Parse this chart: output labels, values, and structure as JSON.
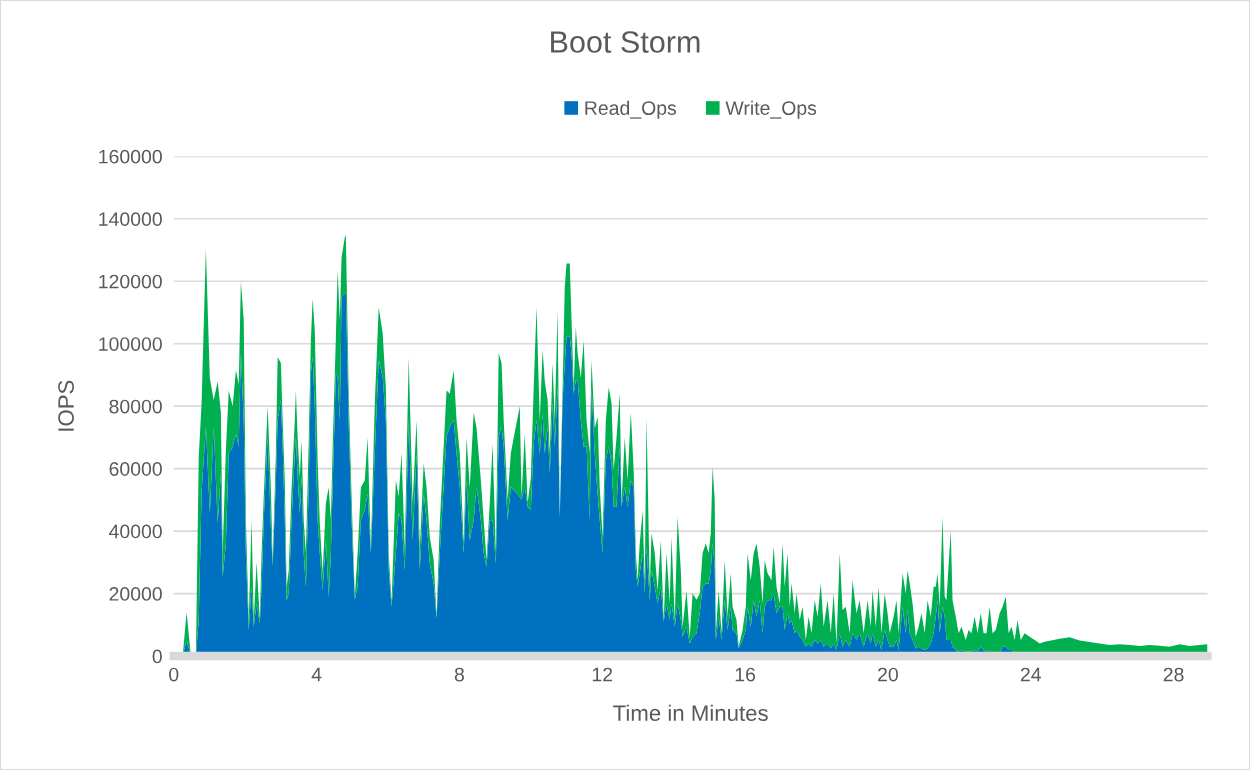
{
  "chart_data": {
    "type": "area",
    "title": "Boot Storm",
    "xlabel": "Time in Minutes",
    "ylabel": "IOPS",
    "stacked": true,
    "legend": "top",
    "grid": "y",
    "xlim": [
      0,
      28.95
    ],
    "xticks": [
      0,
      4,
      8,
      12,
      16,
      20,
      24,
      28
    ],
    "ylim": [
      0,
      160000
    ],
    "yticks": [
      0,
      20000,
      40000,
      60000,
      80000,
      100000,
      120000,
      140000,
      160000
    ],
    "x": [
      0,
      0.25,
      0.36,
      0.48,
      0.62,
      0.7,
      0.78,
      0.9,
      1.01,
      1.12,
      1.23,
      1.32,
      1.37,
      1.46,
      1.54,
      1.65,
      1.74,
      1.82,
      1.88,
      1.96,
      2.02,
      2.1,
      2.18,
      2.24,
      2.32,
      2.41,
      2.46,
      2.52,
      2.63,
      2.72,
      2.77,
      2.86,
      2.91,
      3.0,
      3.05,
      3.11,
      3.16,
      3.22,
      3.3,
      3.39,
      3.42,
      3.47,
      3.53,
      3.58,
      3.64,
      3.7,
      3.78,
      3.84,
      3.89,
      3.95,
      4.03,
      4.09,
      4.17,
      4.26,
      4.34,
      4.4,
      4.45,
      4.54,
      4.59,
      4.65,
      4.7,
      4.79,
      4.82,
      4.9,
      4.98,
      5.07,
      5.15,
      5.24,
      5.35,
      5.43,
      5.52,
      5.63,
      5.74,
      5.85,
      5.94,
      6.02,
      6.1,
      6.22,
      6.3,
      6.38,
      6.47,
      6.58,
      6.69,
      6.8,
      6.89,
      7.0,
      7.08,
      7.17,
      7.28,
      7.36,
      7.45,
      7.53,
      7.64,
      7.73,
      7.84,
      7.92,
      8.01,
      8.12,
      8.2,
      8.29,
      8.4,
      8.48,
      8.6,
      8.68,
      8.76,
      8.85,
      8.93,
      9.02,
      9.1,
      9.18,
      9.24,
      9.35,
      9.44,
      9.69,
      9.74,
      9.83,
      9.91,
      10.0,
      10.08,
      10.16,
      10.25,
      10.33,
      10.39,
      10.47,
      10.53,
      10.61,
      10.67,
      10.75,
      10.81,
      10.89,
      10.95,
      11.0,
      11.09,
      11.14,
      11.2,
      11.26,
      11.31,
      11.4,
      11.48,
      11.56,
      11.65,
      11.7,
      11.79,
      11.87,
      11.93,
      12.01,
      12.1,
      12.18,
      12.26,
      12.32,
      12.4,
      12.49,
      12.54,
      12.63,
      12.71,
      12.8,
      12.88,
      12.94,
      12.99,
      13.05,
      13.13,
      13.19,
      13.24,
      13.33,
      13.38,
      13.47,
      13.55,
      13.64,
      13.72,
      13.8,
      13.89,
      13.94,
      14.03,
      14.11,
      14.2,
      14.25,
      14.36,
      14.45,
      14.53,
      14.64,
      14.73,
      14.81,
      14.9,
      14.98,
      15.04,
      15.09,
      15.15,
      15.18,
      15.26,
      15.34,
      15.43,
      15.51,
      15.6,
      15.65,
      15.76,
      15.82,
      15.93,
      16.02,
      16.07,
      16.16,
      16.24,
      16.32,
      16.41,
      16.49,
      16.55,
      16.63,
      16.74,
      16.8,
      16.88,
      16.97,
      17.05,
      17.11,
      17.19,
      17.25,
      17.3,
      17.39,
      17.44,
      17.53,
      17.61,
      17.7,
      17.78,
      17.86,
      17.95,
      18.03,
      18.12,
      18.2,
      18.31,
      18.4,
      18.48,
      18.56,
      18.65,
      18.73,
      18.82,
      18.93,
      19.01,
      19.12,
      19.21,
      19.32,
      19.43,
      19.52,
      19.57,
      19.66,
      19.74,
      19.82,
      19.91,
      19.99,
      20.05,
      20.16,
      20.24,
      20.3,
      20.41,
      20.5,
      20.55,
      20.61,
      20.69,
      20.78,
      20.86,
      20.94,
      21.03,
      21.11,
      21.2,
      21.28,
      21.34,
      21.39,
      21.45,
      21.53,
      21.59,
      21.64,
      21.76,
      21.81,
      21.9,
      21.98,
      22.06,
      22.18,
      22.26,
      22.34,
      22.43,
      22.51,
      22.6,
      22.68,
      22.76,
      22.85,
      22.93,
      23.02,
      23.13,
      23.21,
      23.3,
      23.38,
      23.46,
      23.55,
      23.63,
      23.72,
      23.83,
      23.97,
      24.11,
      24.25,
      24.39,
      24.81,
      25.09,
      25.37,
      25.65,
      25.93,
      26.21,
      26.49,
      26.77,
      27.05,
      27.33,
      27.61,
      27.89,
      28.17,
      28.45,
      28.73,
      28.95
    ],
    "series": [
      {
        "name": "Read_Ops",
        "color": "#0070c0",
        "values": [
          0,
          0,
          5000,
          0,
          0,
          11500,
          52600,
          73400,
          45700,
          73400,
          42500,
          58500,
          25400,
          36000,
          64800,
          67000,
          71200,
          67000,
          96800,
          75500,
          32800,
          8300,
          22200,
          9400,
          16800,
          10400,
          22200,
          43500,
          70200,
          41400,
          28600,
          56300,
          75500,
          81900,
          67000,
          43500,
          17900,
          20000,
          43500,
          64800,
          70200,
          57400,
          45700,
          57400,
          32800,
          22200,
          54200,
          90400,
          95800,
          79800,
          43500,
          32800,
          21100,
          37100,
          19000,
          32800,
          54200,
          90400,
          89400,
          75500,
          115000,
          116000,
          116000,
          74400,
          43500,
          18000,
          22200,
          43500,
          46700,
          52000,
          32800,
          64800,
          94700,
          89400,
          75500,
          27500,
          15800,
          32800,
          45700,
          43500,
          27500,
          75500,
          37100,
          64800,
          27500,
          52000,
          43500,
          29600,
          23200,
          12000,
          32800,
          48800,
          70200,
          73400,
          75500,
          64800,
          54200,
          32800,
          56300,
          37100,
          43500,
          54200,
          43500,
          32800,
          28600,
          43500,
          43500,
          29600,
          70200,
          73400,
          67000,
          43500,
          54200,
          51000,
          50000,
          54200,
          47800,
          46700,
          68000,
          75500,
          64800,
          77600,
          64800,
          73400,
          58400,
          80900,
          67000,
          86200,
          44000,
          81900,
          93600,
          102200,
          102200,
          96900,
          84000,
          88300,
          88300,
          75500,
          67000,
          67000,
          43500,
          86200,
          64800,
          52000,
          43500,
          32800,
          62700,
          67000,
          61600,
          47800,
          47800,
          67000,
          47800,
          54200,
          47800,
          56300,
          54200,
          27500,
          22200,
          26500,
          32800,
          20000,
          35000,
          17900,
          27500,
          22200,
          16800,
          22200,
          11000,
          16800,
          11500,
          16800,
          9400,
          16800,
          11500,
          6200,
          9400,
          4000,
          6200,
          7300,
          13700,
          22200,
          23200,
          23200,
          27500,
          36000,
          28600,
          5100,
          12600,
          5100,
          17900,
          8300,
          15800,
          8300,
          7300,
          2500,
          5100,
          8300,
          15800,
          9400,
          17900,
          12600,
          17900,
          7300,
          15800,
          17900,
          17900,
          20000,
          13700,
          15800,
          15800,
          8300,
          13700,
          10400,
          11500,
          7300,
          8300,
          6200,
          5100,
          3000,
          4000,
          3000,
          5100,
          4000,
          5100,
          3000,
          4000,
          2400,
          4000,
          1900,
          7300,
          3000,
          5100,
          3000,
          7300,
          5100,
          7300,
          3000,
          7300,
          4000,
          7300,
          3000,
          5100,
          1900,
          8300,
          5100,
          3000,
          3000,
          5100,
          1900,
          15800,
          7300,
          14700,
          7300,
          5100,
          2400,
          3000,
          2400,
          1900,
          2400,
          4000,
          7300,
          12600,
          17900,
          7300,
          15800,
          12600,
          5100,
          5100,
          3000,
          1900,
          1400,
          1900,
          1400,
          1400,
          1400,
          1900,
          1400,
          3000,
          1900,
          800,
          1900,
          800,
          800,
          800,
          3000,
          3000,
          1900,
          1900,
          800,
          800,
          800,
          500,
          500,
          400,
          300,
          300,
          0,
          0,
          0,
          0,
          0,
          0,
          0,
          0,
          0,
          0,
          0,
          0,
          0,
          0,
          0,
          0
        ]
      },
      {
        "name": "Write_Ops",
        "color": "#00b050",
        "values": [
          0,
          0,
          9000,
          0,
          0,
          52500,
          28400,
          57100,
          43300,
          8600,
          45500,
          19500,
          7600,
          30000,
          20200,
          13000,
          20300,
          20000,
          23200,
          32000,
          10700,
          3200,
          21300,
          2100,
          13200,
          1100,
          10800,
          7500,
          9800,
          12600,
          1400,
          8700,
          20200,
          11900,
          8500,
          12800,
          4100,
          7500,
          10500,
          10700,
          14800,
          12600,
          11700,
          11600,
          10700,
          10800,
          14800,
          10600,
          18700,
          24200,
          19200,
          9700,
          5400,
          11900,
          35000,
          10700,
          12800,
          11600,
          34100,
          32000,
          12700,
          18000,
          18700,
          9600,
          7500,
          1000,
          10800,
          10500,
          9600,
          18000,
          1200,
          16200,
          17000,
          14000,
          10500,
          5500,
          1200,
          23500,
          5300,
          21500,
          6500,
          20200,
          11900,
          10700,
          6500,
          9700,
          10500,
          8400,
          7500,
          500,
          9700,
          11700,
          14800,
          10600,
          16000,
          10700,
          10800,
          3200,
          13700,
          16900,
          34500,
          18800,
          12800,
          10700,
          2100,
          5500,
          24500,
          3400,
          26800,
          20400,
          8500,
          6500,
          10800,
          29000,
          1000,
          16800,
          1200,
          10300,
          18000,
          36200,
          10700,
          20400,
          23200,
          8600,
          6600,
          12900,
          8500,
          24500,
          500,
          4100,
          24400,
          23500,
          23500,
          10600,
          2000,
          17000,
          8700,
          13500,
          34000,
          8500,
          21500,
          8500,
          8200,
          24500,
          10500,
          5200,
          12800,
          19000,
          19400,
          11700,
          22200,
          17000,
          1200,
          15800,
          8500,
          21700,
          5300,
          5500,
          2100,
          9500,
          13900,
          3300,
          41500,
          4100,
          11800,
          10800,
          4200,
          14800,
          500,
          16200,
          5500,
          21200,
          2100,
          27700,
          16000,
          3100,
          11600,
          2000,
          13800,
          10700,
          6300,
          10800,
          12800,
          9800,
          11800,
          24600,
          21400,
          2200,
          8500,
          2200,
          12800,
          4300,
          10700,
          7500,
          4200,
          500,
          3200,
          7500,
          17000,
          14900,
          14900,
          23400,
          10700,
          9500,
          14900,
          8600,
          6400,
          15000,
          8500,
          1000,
          20200,
          13900,
          19100,
          5400,
          11800,
          6400,
          11700,
          5300,
          10700,
          2100,
          8600,
          4300,
          12800,
          8600,
          18200,
          6400,
          13900,
          4900,
          16000,
          2100,
          25500,
          11700,
          10700,
          4300,
          17000,
          8600,
          10600,
          4300,
          10600,
          5400,
          13800,
          6400,
          17100,
          5400,
          11700,
          8600,
          4300,
          9600,
          12800,
          5400,
          10700,
          12700,
          12800,
          16000,
          11700,
          3800,
          6400,
          11300,
          5400,
          15500,
          8600,
          14900,
          9600,
          8600,
          8500,
          28800,
          6400,
          12800,
          35200,
          14900,
          10700,
          5900,
          7500,
          3700,
          6900,
          5900,
          10700,
          5900,
          10700,
          5400,
          6500,
          13900,
          6500,
          7500,
          12900,
          12800,
          16000,
          5400,
          7500,
          4300,
          10700,
          4300,
          6800,
          5700,
          4700,
          3700,
          4300,
          5500,
          6000,
          5000,
          4500,
          4000,
          3500,
          3800,
          3500,
          3200,
          3500,
          3300,
          3000,
          3800,
          3200,
          3500,
          3800
        ]
      }
    ]
  }
}
